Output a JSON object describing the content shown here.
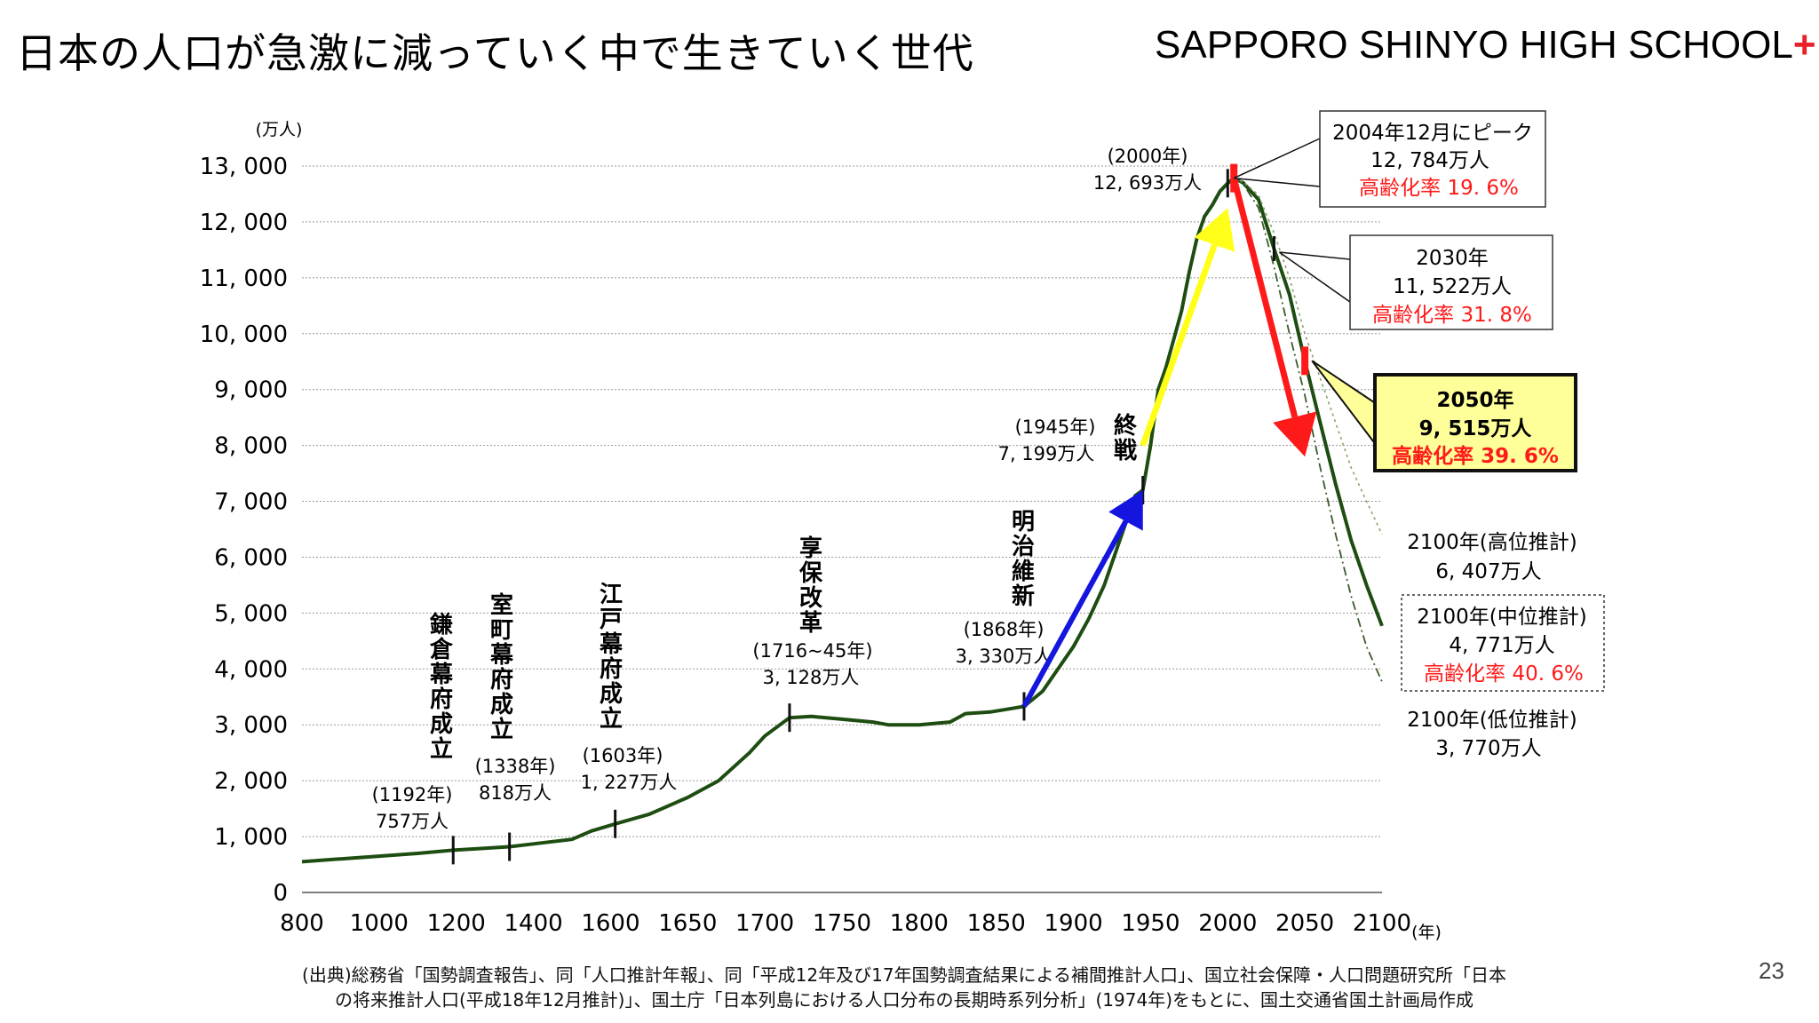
{
  "slide": {
    "title": "日本の人口が急激に減っていく中で生きていく世代",
    "school": "SAPPORO SHINYO HIGH SCHOOL",
    "school_mark": "+",
    "page_number": "23"
  },
  "chart_data": {
    "type": "line",
    "title": "",
    "ylabel_unit": "(万人)",
    "xlabel_unit": "(年)",
    "ylim": [
      0,
      13000
    ],
    "y_ticks": [
      0,
      1000,
      2000,
      3000,
      4000,
      5000,
      6000,
      7000,
      8000,
      9000,
      10000,
      11000,
      12000,
      13000
    ],
    "y_tick_labels": [
      "0",
      "1, 000",
      "2, 000",
      "3, 000",
      "4, 000",
      "5, 000",
      "6, 000",
      "7, 000",
      "8, 000",
      "9, 000",
      "10, 000",
      "11, 000",
      "12, 000",
      "13, 000"
    ],
    "x_tick_labels": [
      "800",
      "1000",
      "1200",
      "1400",
      "1600",
      "1650",
      "1700",
      "1750",
      "1800",
      "1850",
      "1900",
      "1950",
      "2000",
      "2050",
      "2100"
    ],
    "grid": true,
    "series": [
      {
        "role": "historical",
        "x": [
          800,
          900,
          1000,
          1100,
          1192,
          1250,
          1338,
          1400,
          1500,
          1550,
          1603,
          1625,
          1650,
          1670,
          1690,
          1700,
          1716,
          1730,
          1750,
          1770,
          1780,
          1800,
          1820,
          1830,
          1846,
          1868,
          1880,
          1890,
          1900,
          1910,
          1920,
          1930,
          1940,
          1945,
          1950,
          1955,
          1960,
          1965,
          1970,
          1975,
          1980,
          1985,
          1990,
          1995,
          2000,
          2004
        ],
        "y": [
          550,
          600,
          650,
          700,
          757,
          780,
          818,
          870,
          950,
          1100,
          1227,
          1400,
          1700,
          2000,
          2500,
          2800,
          3128,
          3150,
          3100,
          3050,
          3000,
          3000,
          3050,
          3200,
          3230,
          3330,
          3600,
          4000,
          4400,
          4900,
          5500,
          6300,
          7100,
          7199,
          8000,
          9000,
          9400,
          9900,
          10400,
          11100,
          11700,
          12100,
          12300,
          12550,
          12693,
          12784
        ]
      },
      {
        "role": "projection-middle",
        "x": [
          2004,
          2010,
          2020,
          2030,
          2040,
          2050,
          2060,
          2070,
          2080,
          2090,
          2100
        ],
        "y": [
          12784,
          12700,
          12400,
          11522,
          10700,
          9515,
          8400,
          7300,
          6300,
          5500,
          4771
        ]
      },
      {
        "role": "projection-high",
        "x": [
          2004,
          2010,
          2020,
          2030,
          2040,
          2050,
          2060,
          2070,
          2080,
          2090,
          2100
        ],
        "y": [
          12784,
          12720,
          12480,
          11800,
          11000,
          10000,
          9200,
          8400,
          7600,
          7000,
          6407
        ]
      },
      {
        "role": "projection-low",
        "x": [
          2004,
          2010,
          2020,
          2030,
          2040,
          2050,
          2060,
          2070,
          2080,
          2090,
          2100
        ],
        "y": [
          12784,
          12680,
          12250,
          11200,
          10000,
          8900,
          7600,
          6400,
          5300,
          4400,
          3770
        ]
      }
    ],
    "events": [
      {
        "x": 1192,
        "y": 757,
        "name": "鎌倉幕府成立",
        "year": "(1192年)",
        "pop": "757万人"
      },
      {
        "x": 1338,
        "y": 818,
        "name": "室町幕府成立",
        "year": "(1338年)",
        "pop": "818万人"
      },
      {
        "x": 1603,
        "y": 1227,
        "name": "江戸幕府成立",
        "year": "(1603年)",
        "pop": "1, 227万人"
      },
      {
        "x": 1716,
        "y": 3128,
        "name": "享保改革",
        "year": "(1716~45年)",
        "pop": "3, 128万人"
      },
      {
        "x": 1868,
        "y": 3330,
        "name": "明治維新",
        "year": "(1868年)",
        "pop": "3, 330万人"
      },
      {
        "x": 1945,
        "y": 7199,
        "name": "終戦",
        "year": "(1945年)",
        "pop": "7, 199万人"
      },
      {
        "x": 2000,
        "y": 12693,
        "name": "",
        "year": "(2000年)",
        "pop": "12, 693万人"
      }
    ],
    "callouts": {
      "peak": {
        "x": 2004,
        "y": 12784,
        "line1": "2004年12月にピーク",
        "line2": "12, 784万人",
        "rate": "高齢化率 19. 6%"
      },
      "y2030": {
        "x": 2030,
        "y": 11522,
        "line1": "2030年",
        "line2": "11, 522万人",
        "rate": "高齢化率 31. 8%"
      },
      "y2050": {
        "x": 2050,
        "y": 9515,
        "line1": "2050年",
        "line2": "9, 515万人",
        "rate": "高齢化率 39. 6%"
      },
      "high2100": {
        "line1": "2100年(高位推計)",
        "line2": "6, 407万人"
      },
      "mid2100": {
        "line1": "2100年(中位推計)",
        "line2": "4, 771万人",
        "rate": "高齢化率 40. 6%"
      },
      "low2100": {
        "line1": "2100年(低位推計)",
        "line2": "3, 770万人"
      }
    },
    "arrows": [
      {
        "color": "#1515e0",
        "from": [
          1868,
          3330
        ],
        "to": [
          1945,
          7199
        ]
      },
      {
        "color": "#ffff1a",
        "from": [
          1945,
          8000
        ],
        "to": [
          2000,
          12250
        ]
      },
      {
        "color": "#ff1a1a",
        "from": [
          2004,
          12784
        ],
        "to": [
          2050,
          7800
        ]
      }
    ],
    "colors": {
      "line": "#1e4d12",
      "rate_text": "#ff1a1a",
      "highlight_box": "#ffff99",
      "grid": "#999999"
    }
  },
  "source": {
    "line1": "(出典)総務省「国勢調査報告」、同「人口推計年報」、同「平成12年及び17年国勢調査結果による補間推計人口」、国立社会保障・人口問題研究所「日本",
    "line2": "の将来推計人口(平成18年12月推計)」、国土庁「日本列島における人口分布の長期時系列分析」(1974年)をもとに、国土交通省国土計画局作成"
  }
}
